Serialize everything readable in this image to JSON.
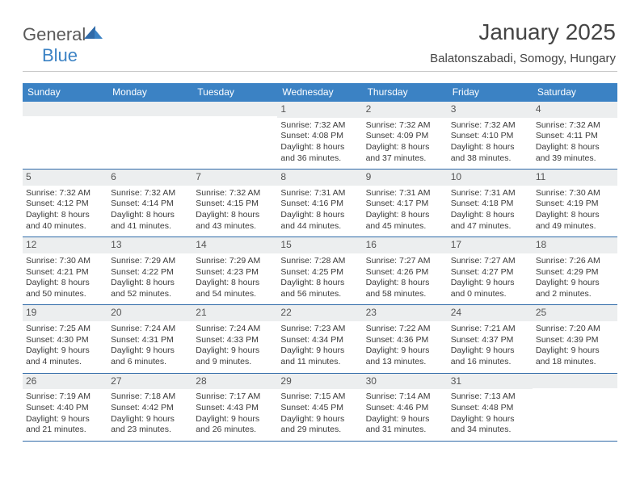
{
  "logo": {
    "part1": "General",
    "part2": "Blue"
  },
  "title": "January 2025",
  "subtitle": "Balatonszabadi, Somogy, Hungary",
  "header_bg": "#3b82c4",
  "weekdays": [
    "Sunday",
    "Monday",
    "Tuesday",
    "Wednesday",
    "Thursday",
    "Friday",
    "Saturday"
  ],
  "weeks": [
    [
      null,
      null,
      null,
      {
        "n": "1",
        "sunrise": "7:32 AM",
        "sunset": "4:08 PM",
        "dl1": "8 hours",
        "dl2": "and 36 minutes."
      },
      {
        "n": "2",
        "sunrise": "7:32 AM",
        "sunset": "4:09 PM",
        "dl1": "8 hours",
        "dl2": "and 37 minutes."
      },
      {
        "n": "3",
        "sunrise": "7:32 AM",
        "sunset": "4:10 PM",
        "dl1": "8 hours",
        "dl2": "and 38 minutes."
      },
      {
        "n": "4",
        "sunrise": "7:32 AM",
        "sunset": "4:11 PM",
        "dl1": "8 hours",
        "dl2": "and 39 minutes."
      }
    ],
    [
      {
        "n": "5",
        "sunrise": "7:32 AM",
        "sunset": "4:12 PM",
        "dl1": "8 hours",
        "dl2": "and 40 minutes."
      },
      {
        "n": "6",
        "sunrise": "7:32 AM",
        "sunset": "4:14 PM",
        "dl1": "8 hours",
        "dl2": "and 41 minutes."
      },
      {
        "n": "7",
        "sunrise": "7:32 AM",
        "sunset": "4:15 PM",
        "dl1": "8 hours",
        "dl2": "and 43 minutes."
      },
      {
        "n": "8",
        "sunrise": "7:31 AM",
        "sunset": "4:16 PM",
        "dl1": "8 hours",
        "dl2": "and 44 minutes."
      },
      {
        "n": "9",
        "sunrise": "7:31 AM",
        "sunset": "4:17 PM",
        "dl1": "8 hours",
        "dl2": "and 45 minutes."
      },
      {
        "n": "10",
        "sunrise": "7:31 AM",
        "sunset": "4:18 PM",
        "dl1": "8 hours",
        "dl2": "and 47 minutes."
      },
      {
        "n": "11",
        "sunrise": "7:30 AM",
        "sunset": "4:19 PM",
        "dl1": "8 hours",
        "dl2": "and 49 minutes."
      }
    ],
    [
      {
        "n": "12",
        "sunrise": "7:30 AM",
        "sunset": "4:21 PM",
        "dl1": "8 hours",
        "dl2": "and 50 minutes."
      },
      {
        "n": "13",
        "sunrise": "7:29 AM",
        "sunset": "4:22 PM",
        "dl1": "8 hours",
        "dl2": "and 52 minutes."
      },
      {
        "n": "14",
        "sunrise": "7:29 AM",
        "sunset": "4:23 PM",
        "dl1": "8 hours",
        "dl2": "and 54 minutes."
      },
      {
        "n": "15",
        "sunrise": "7:28 AM",
        "sunset": "4:25 PM",
        "dl1": "8 hours",
        "dl2": "and 56 minutes."
      },
      {
        "n": "16",
        "sunrise": "7:27 AM",
        "sunset": "4:26 PM",
        "dl1": "8 hours",
        "dl2": "and 58 minutes."
      },
      {
        "n": "17",
        "sunrise": "7:27 AM",
        "sunset": "4:27 PM",
        "dl1": "9 hours",
        "dl2": "and 0 minutes."
      },
      {
        "n": "18",
        "sunrise": "7:26 AM",
        "sunset": "4:29 PM",
        "dl1": "9 hours",
        "dl2": "and 2 minutes."
      }
    ],
    [
      {
        "n": "19",
        "sunrise": "7:25 AM",
        "sunset": "4:30 PM",
        "dl1": "9 hours",
        "dl2": "and 4 minutes."
      },
      {
        "n": "20",
        "sunrise": "7:24 AM",
        "sunset": "4:31 PM",
        "dl1": "9 hours",
        "dl2": "and 6 minutes."
      },
      {
        "n": "21",
        "sunrise": "7:24 AM",
        "sunset": "4:33 PM",
        "dl1": "9 hours",
        "dl2": "and 9 minutes."
      },
      {
        "n": "22",
        "sunrise": "7:23 AM",
        "sunset": "4:34 PM",
        "dl1": "9 hours",
        "dl2": "and 11 minutes."
      },
      {
        "n": "23",
        "sunrise": "7:22 AM",
        "sunset": "4:36 PM",
        "dl1": "9 hours",
        "dl2": "and 13 minutes."
      },
      {
        "n": "24",
        "sunrise": "7:21 AM",
        "sunset": "4:37 PM",
        "dl1": "9 hours",
        "dl2": "and 16 minutes."
      },
      {
        "n": "25",
        "sunrise": "7:20 AM",
        "sunset": "4:39 PM",
        "dl1": "9 hours",
        "dl2": "and 18 minutes."
      }
    ],
    [
      {
        "n": "26",
        "sunrise": "7:19 AM",
        "sunset": "4:40 PM",
        "dl1": "9 hours",
        "dl2": "and 21 minutes."
      },
      {
        "n": "27",
        "sunrise": "7:18 AM",
        "sunset": "4:42 PM",
        "dl1": "9 hours",
        "dl2": "and 23 minutes."
      },
      {
        "n": "28",
        "sunrise": "7:17 AM",
        "sunset": "4:43 PM",
        "dl1": "9 hours",
        "dl2": "and 26 minutes."
      },
      {
        "n": "29",
        "sunrise": "7:15 AM",
        "sunset": "4:45 PM",
        "dl1": "9 hours",
        "dl2": "and 29 minutes."
      },
      {
        "n": "30",
        "sunrise": "7:14 AM",
        "sunset": "4:46 PM",
        "dl1": "9 hours",
        "dl2": "and 31 minutes."
      },
      {
        "n": "31",
        "sunrise": "7:13 AM",
        "sunset": "4:48 PM",
        "dl1": "9 hours",
        "dl2": "and 34 minutes."
      },
      null
    ]
  ],
  "labels": {
    "sunrise": "Sunrise: ",
    "sunset": "Sunset: ",
    "daylight": "Daylight: "
  }
}
